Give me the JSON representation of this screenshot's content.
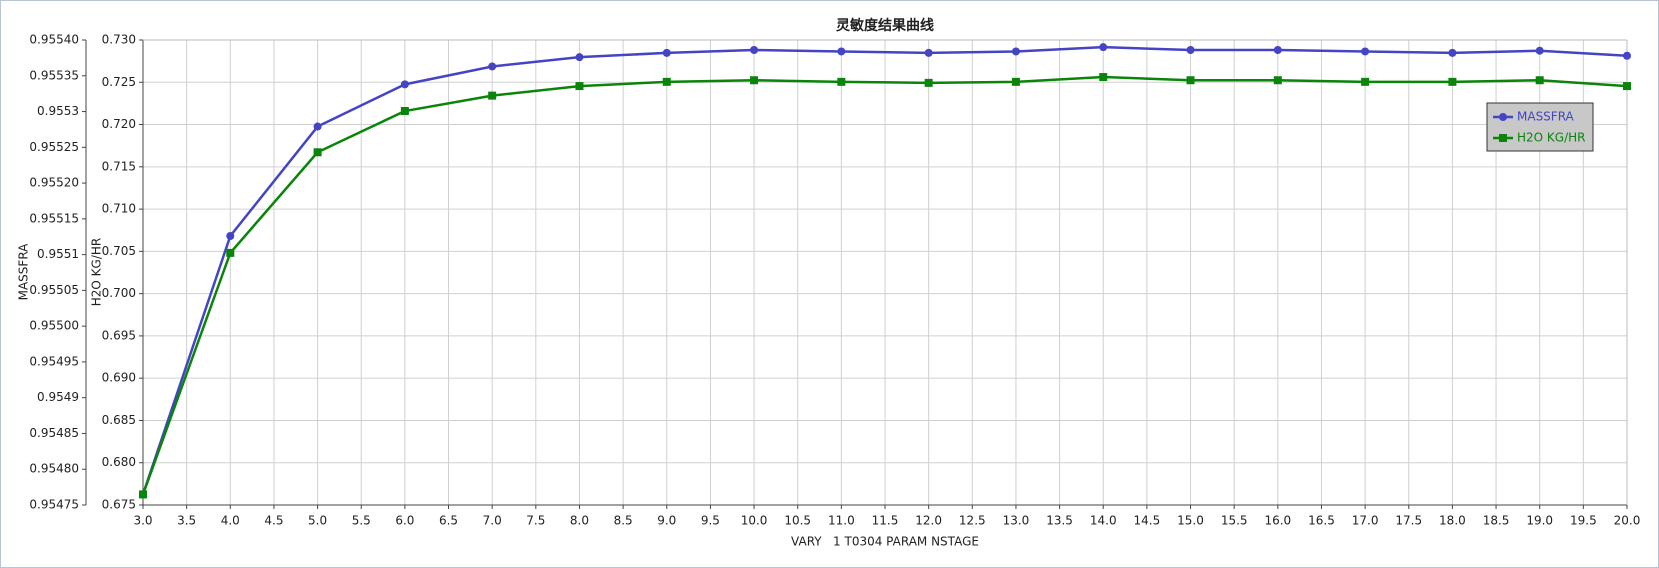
{
  "chart_data": {
    "type": "line",
    "title": "灵敏度结果曲线",
    "x_label": "VARY   1 T0304 PARAM NSTAGE",
    "y_label": "MASSFRA",
    "y2_label": "H2O KG/HR",
    "x": [
      3,
      4,
      5,
      6,
      7,
      8,
      9,
      10,
      11,
      12,
      13,
      14,
      15,
      16,
      17,
      18,
      19,
      20
    ],
    "xlim": [
      3,
      20
    ],
    "xticks": [
      {
        "value": 3,
        "label": "3.0"
      },
      3.5,
      {
        "value": 4,
        "label": "4.0"
      },
      4.5,
      {
        "value": 5,
        "label": "5.0"
      },
      5.5,
      {
        "value": 6,
        "label": "6.0"
      },
      6.5,
      {
        "value": 7,
        "label": "7.0"
      },
      7.5,
      {
        "value": 8,
        "label": "8.0"
      },
      8.5,
      {
        "value": 9,
        "label": "9.0"
      },
      9.5,
      {
        "value": 10,
        "label": "10.0"
      },
      10.5,
      {
        "value": 11,
        "label": "11.0"
      },
      11.5,
      {
        "value": 12,
        "label": "12.0"
      },
      12.5,
      {
        "value": 13,
        "label": "13.0"
      },
      13.5,
      {
        "value": 14,
        "label": "14.0"
      },
      14.5,
      {
        "value": 15,
        "label": "15.0"
      },
      15.5,
      {
        "value": 16,
        "label": "16.0"
      },
      16.5,
      {
        "value": 17,
        "label": "17.0"
      },
      17.5,
      {
        "value": 18,
        "label": "18.0"
      },
      18.5,
      {
        "value": 19,
        "label": "19.0"
      },
      19.5,
      {
        "value": 20,
        "label": "20.0"
      }
    ],
    "ylim": [
      0.95475,
      0.9554
    ],
    "yticks": [
      0.95475,
      {
        "value": 0.9548,
        "label": "0.95480"
      },
      0.95485,
      0.9549,
      0.95495,
      {
        "value": 0.955,
        "label": "0.95500"
      },
      0.95505,
      0.9551,
      0.95515,
      {
        "value": 0.9552,
        "label": "0.95520"
      },
      0.95525,
      0.9553,
      0.95535,
      {
        "value": 0.9554,
        "label": "0.95540"
      }
    ],
    "y2lim": [
      0.675,
      0.73
    ],
    "y2ticks": [
      0.675,
      {
        "value": 0.68,
        "label": "0.680"
      },
      0.685,
      {
        "value": 0.69,
        "label": "0.690"
      },
      0.695,
      {
        "value": 0.7,
        "label": "0.700"
      },
      0.705,
      {
        "value": 0.71,
        "label": "0.710"
      },
      0.715,
      {
        "value": 0.72,
        "label": "0.720"
      },
      0.725,
      {
        "value": 0.73,
        "label": "0.730"
      }
    ],
    "grid": true,
    "legend": "upper right",
    "series": [
      {
        "name": "MASSFRA",
        "color": "#4444c4",
        "marker": "circle",
        "values": [
          0.954765,
          0.955126,
          0.955279,
          0.955338,
          0.955363,
          0.955376,
          0.955382,
          0.955386,
          0.955384,
          0.955382,
          0.955384,
          0.95539,
          0.955386,
          0.955386,
          0.955384,
          0.955382,
          0.955385,
          0.955378
        ]
      },
      {
        "name": "H2O KG/HR",
        "color": "#0a850a",
        "marker": "square",
        "axis": "y2",
        "values": [
          0.67625,
          0.70482,
          0.71672,
          0.7216,
          0.72342,
          0.72455,
          0.72505,
          0.72524,
          0.72505,
          0.72493,
          0.72505,
          0.72562,
          0.72524,
          0.72524,
          0.72505,
          0.72505,
          0.72524,
          0.72455
        ]
      }
    ]
  }
}
